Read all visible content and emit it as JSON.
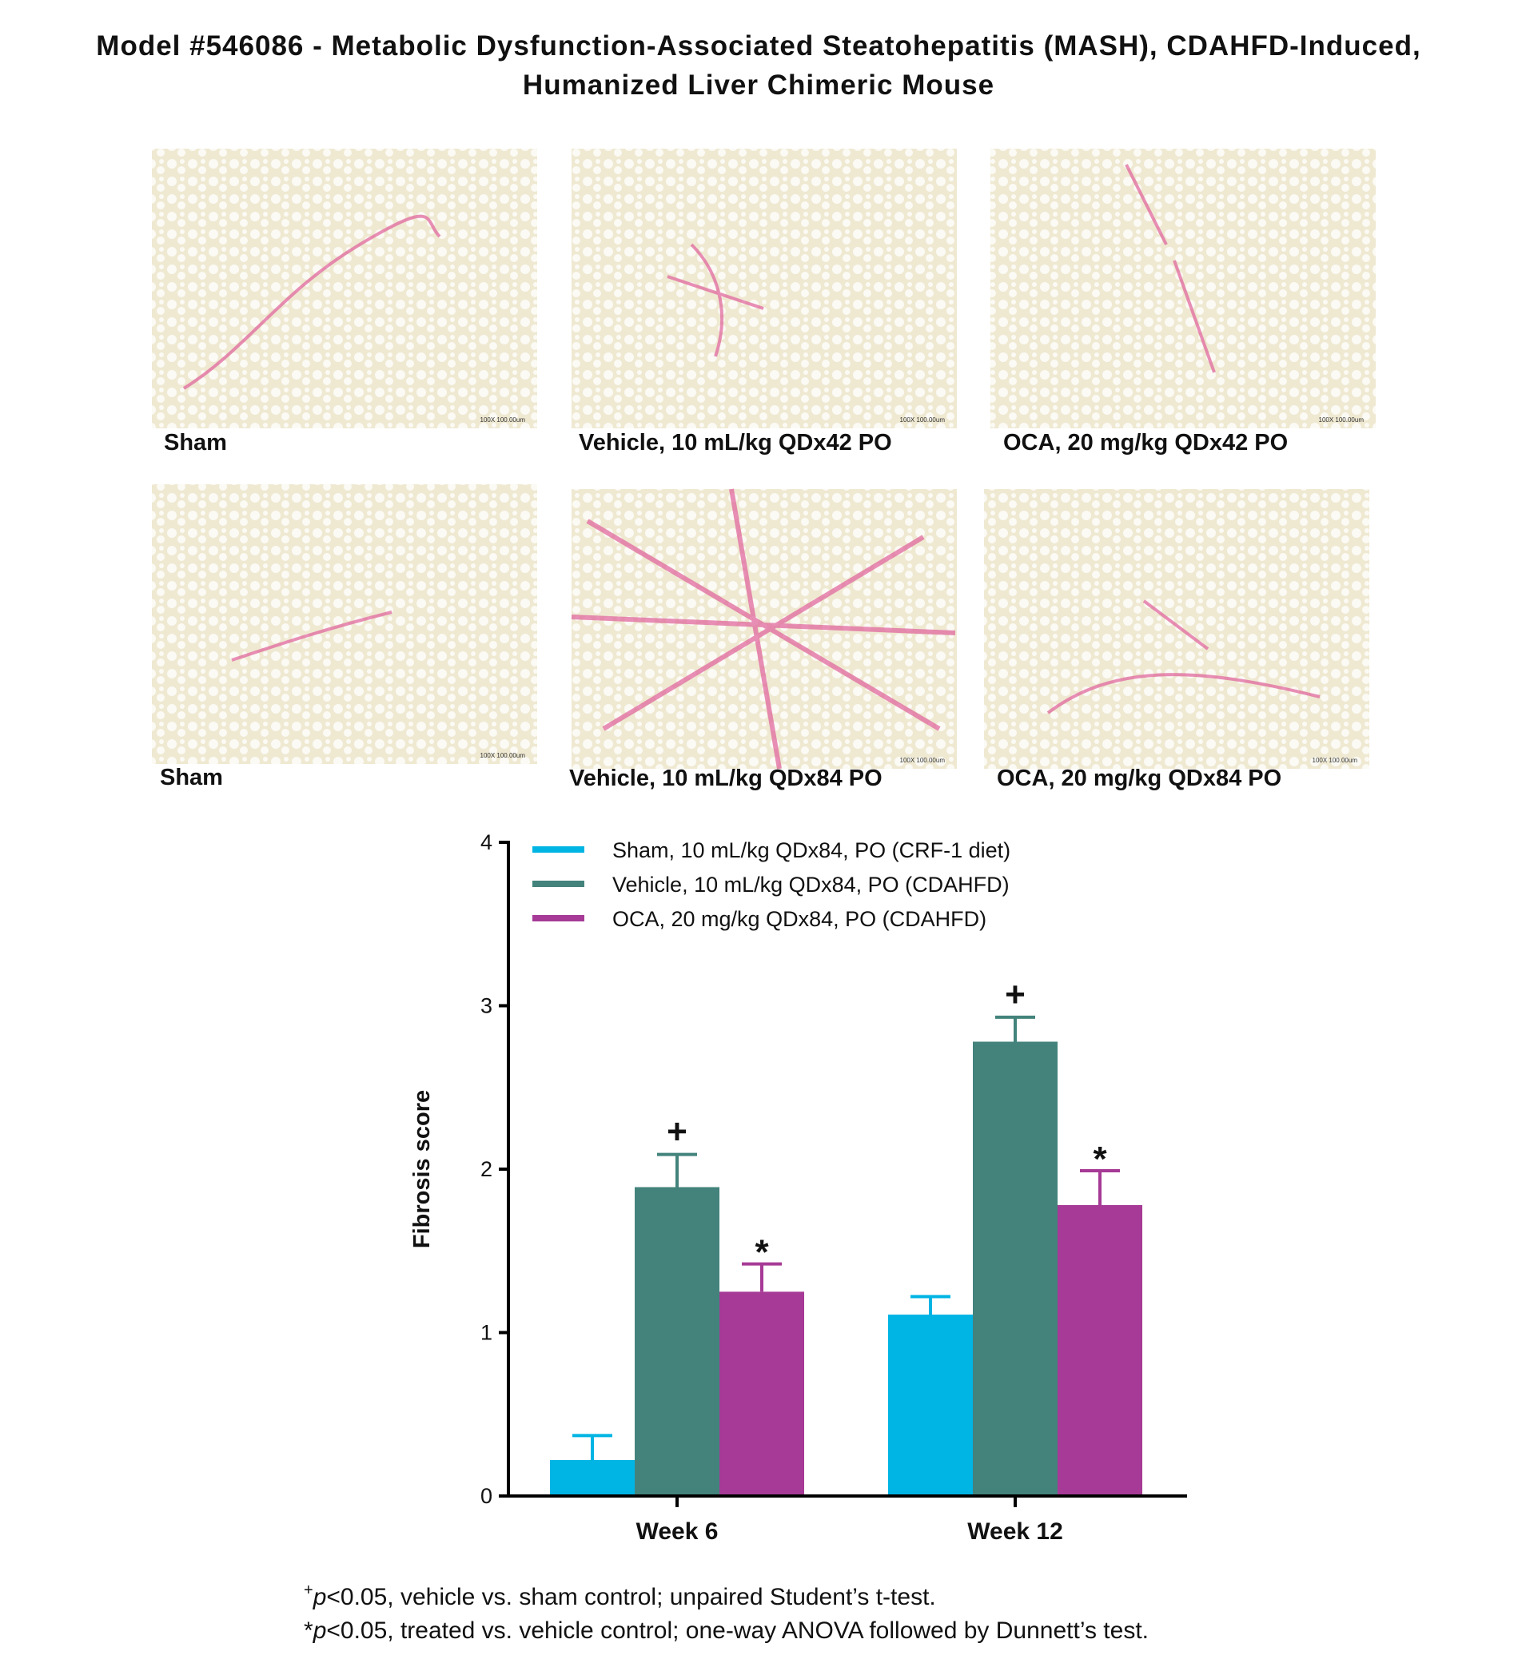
{
  "title": [
    "Model #546086 - Metabolic Dysfunction-Associated Steatohepatitis (MASH), CDAHFD-Induced,",
    "Humanized Liver Chimeric Mouse"
  ],
  "panels": [
    {
      "caption": "Sham",
      "scale": "100X 100.00um"
    },
    {
      "caption": "Vehicle, 10 mL/kg QDx42 PO",
      "scale": "100X 100.00um"
    },
    {
      "caption": "OCA, 20 mg/kg QDx42 PO",
      "scale": "100X 100.00um"
    },
    {
      "caption": "Sham",
      "scale": "100X 100.00um"
    },
    {
      "caption": "Vehicle, 10 mL/kg QDx84 PO",
      "scale": "100X 100.00um"
    },
    {
      "caption": "OCA, 20 mg/kg QDx84 PO",
      "scale": "100X 100.00um"
    }
  ],
  "chart_data": {
    "type": "bar",
    "ylabel": "Fibrosis score",
    "categories": [
      "Week 6",
      "Week 12"
    ],
    "series": [
      {
        "name": "Sham, 10 mL/kg QDx84, PO (CRF-1 diet)",
        "color": "#00b4e4",
        "values": [
          0.22,
          1.11
        ],
        "errors": [
          0.15,
          0.11
        ],
        "annotations": [
          null,
          null
        ]
      },
      {
        "name": "Vehicle, 10 mL/kg QDx84, PO (CDAHFD)",
        "color": "#43837c",
        "values": [
          1.89,
          2.78
        ],
        "errors": [
          0.2,
          0.15
        ],
        "annotations": [
          "+",
          "+"
        ]
      },
      {
        "name": "OCA, 20 mg/kg QDx84, PO (CDAHFD)",
        "color": "#a63a96",
        "values": [
          1.25,
          1.78
        ],
        "errors": [
          0.17,
          0.21
        ],
        "annotations": [
          "*",
          "*"
        ]
      }
    ],
    "ylim": [
      0,
      4
    ],
    "yticks": [
      0,
      1,
      2,
      3,
      4
    ],
    "legend": "upper-left"
  },
  "footnotes": [
    {
      "mark": "+",
      "p": "p",
      "text": "<0.05, vehicle vs. sham control; unpaired Student’s t-test."
    },
    {
      "mark": "*",
      "p": "p",
      "text": "<0.05, treated vs. vehicle control; one-way ANOVA followed by Dunnett’s test."
    }
  ]
}
